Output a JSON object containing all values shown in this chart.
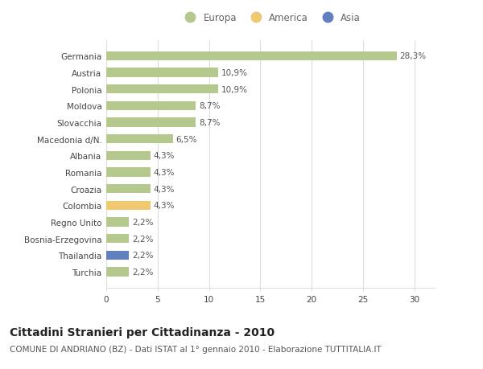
{
  "categories": [
    "Germania",
    "Austria",
    "Polonia",
    "Moldova",
    "Slovacchia",
    "Macedonia d/N.",
    "Albania",
    "Romania",
    "Croazia",
    "Colombia",
    "Regno Unito",
    "Bosnia-Erzegovina",
    "Thailandia",
    "Turchia"
  ],
  "values": [
    28.3,
    10.9,
    10.9,
    8.7,
    8.7,
    6.5,
    4.3,
    4.3,
    4.3,
    4.3,
    2.2,
    2.2,
    2.2,
    2.2
  ],
  "labels": [
    "28,3%",
    "10,9%",
    "10,9%",
    "8,7%",
    "8,7%",
    "6,5%",
    "4,3%",
    "4,3%",
    "4,3%",
    "4,3%",
    "2,2%",
    "2,2%",
    "2,2%",
    "2,2%"
  ],
  "continent": [
    "Europa",
    "Europa",
    "Europa",
    "Europa",
    "Europa",
    "Europa",
    "Europa",
    "Europa",
    "Europa",
    "America",
    "Europa",
    "Europa",
    "Asia",
    "Europa"
  ],
  "color_europa": "#b5c98e",
  "color_america": "#f0c870",
  "color_asia": "#6080c0",
  "legend_europa": "Europa",
  "legend_america": "America",
  "legend_asia": "Asia",
  "xlim": [
    0,
    32
  ],
  "xticks": [
    0,
    5,
    10,
    15,
    20,
    25,
    30
  ],
  "title": "Cittadini Stranieri per Cittadinanza - 2010",
  "subtitle": "COMUNE DI ANDRIANO (BZ) - Dati ISTAT al 1° gennaio 2010 - Elaborazione TUTTITALIA.IT",
  "bg_color": "#ffffff",
  "grid_color": "#dddddd",
  "bar_height": 0.55,
  "title_fontsize": 10,
  "subtitle_fontsize": 7.5,
  "label_fontsize": 7.5,
  "tick_fontsize": 7.5,
  "legend_fontsize": 8.5
}
